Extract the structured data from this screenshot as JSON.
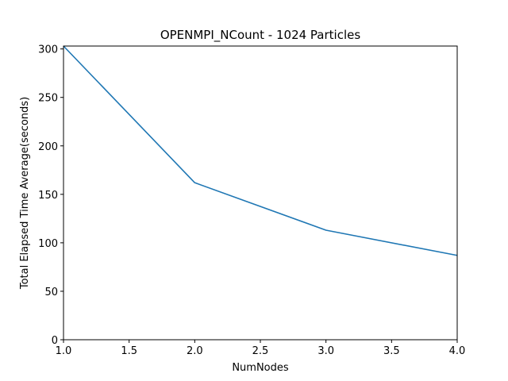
{
  "chart_data": {
    "type": "line",
    "title": "OPENMPI_NCount - 1024 Particles",
    "xlabel": "NumNodes",
    "ylabel": "Total Elapsed Time Average(seconds)",
    "xlim": [
      1.0,
      4.0
    ],
    "ylim": [
      0,
      303
    ],
    "xticks": [
      "1.0",
      "1.5",
      "2.0",
      "2.5",
      "3.0",
      "3.5",
      "4.0"
    ],
    "yticks": [
      "0",
      "50",
      "100",
      "150",
      "200",
      "250",
      "300"
    ],
    "grid": false,
    "series": [
      {
        "x": [
          1,
          2,
          3,
          4
        ],
        "values": [
          303,
          162,
          113,
          87
        ],
        "color": "#1f77b4"
      }
    ]
  }
}
